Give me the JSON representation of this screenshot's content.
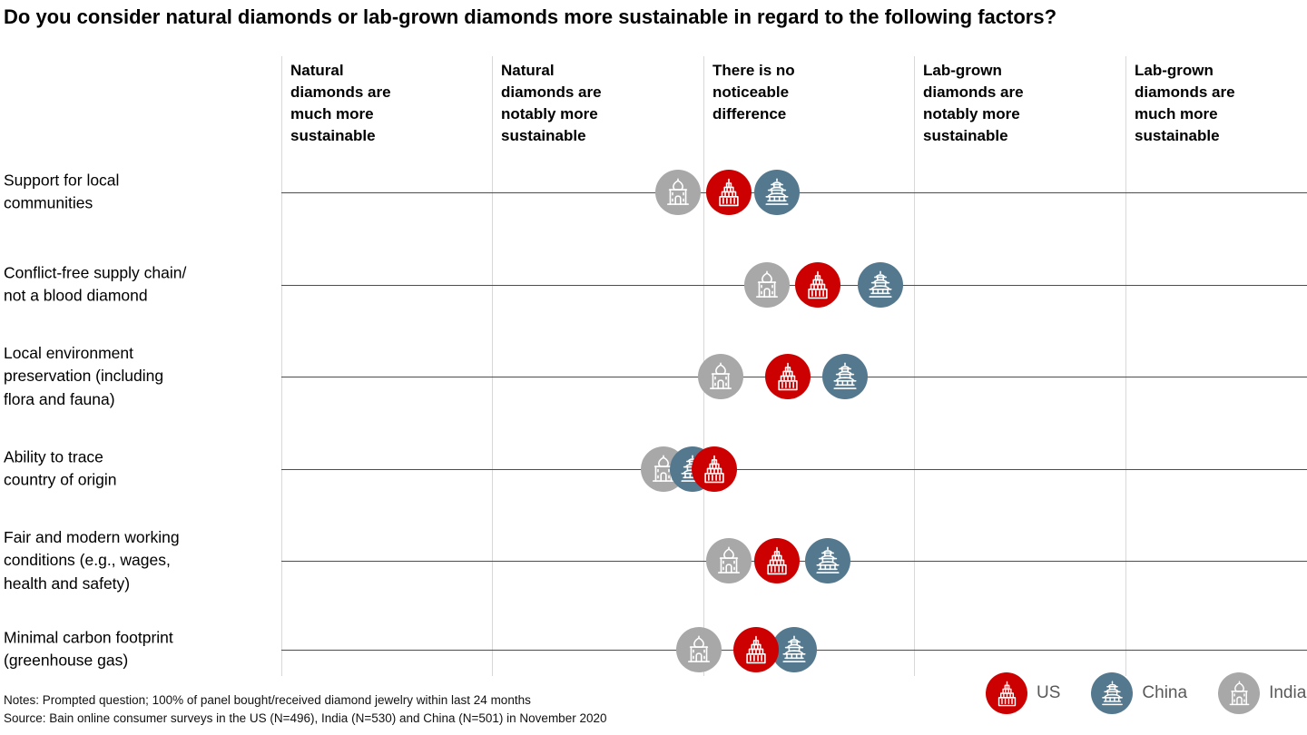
{
  "title": "Do you consider natural diamonds or lab-grown diamonds more sustainable in regard to the following factors?",
  "notes": "Notes: Prompted question; 100% of panel bought/received diamond jewelry within last 24 months",
  "source": "Source: Bain online consumer surveys in the US (N=496), India (N=530) and China (N=501) in November 2020",
  "legend": {
    "items": [
      {
        "label": "US",
        "series": "US"
      },
      {
        "label": "China",
        "series": "China"
      },
      {
        "label": "India",
        "series": "India"
      }
    ]
  },
  "chart_data": {
    "type": "scatter",
    "subtype": "dot-plot of three country markers on a 5-point agreement scale per row",
    "scale": {
      "min": 1,
      "max": 5,
      "columns": [
        "Natural\ndiamonds are\nmuch more\nsustainable",
        "Natural\ndiamonds are\nnotably more\nsustainable",
        "There is no\nnoticeable\ndifference",
        "Lab-grown\ndiamonds are\nnotably more\nsustainable",
        "Lab-grown\ndiamonds are\nmuch more\nsustainable"
      ]
    },
    "series": [
      {
        "name": "US",
        "color": "#cc0000",
        "icon": "us"
      },
      {
        "name": "China",
        "color": "#54788e",
        "icon": "china"
      },
      {
        "name": "India",
        "color": "#a8a8a8",
        "icon": "india"
      }
    ],
    "rows": [
      {
        "label": "Support for local\ncommunities",
        "values": {
          "US": 2.62,
          "China": 2.85,
          "India": 2.38
        }
      },
      {
        "label": "Conflict-free supply chain/\nnot a blood diamond",
        "values": {
          "US": 3.04,
          "China": 3.34,
          "India": 2.8
        }
      },
      {
        "label": "Local environment\npreservation (including\nflora and fauna)",
        "values": {
          "US": 2.9,
          "China": 3.17,
          "India": 2.58
        }
      },
      {
        "label": "Ability to trace\ncountry of origin",
        "values": {
          "US": 2.55,
          "China": 2.45,
          "India": 2.31
        }
      },
      {
        "label": "Fair and modern working\nconditions (e.g., wages,\nhealth and safety)",
        "values": {
          "US": 2.85,
          "China": 3.09,
          "India": 2.62
        }
      },
      {
        "label": "Minimal carbon footprint\n(greenhouse gas)",
        "values": {
          "US": 2.75,
          "China": 2.93,
          "India": 2.48
        }
      }
    ]
  }
}
